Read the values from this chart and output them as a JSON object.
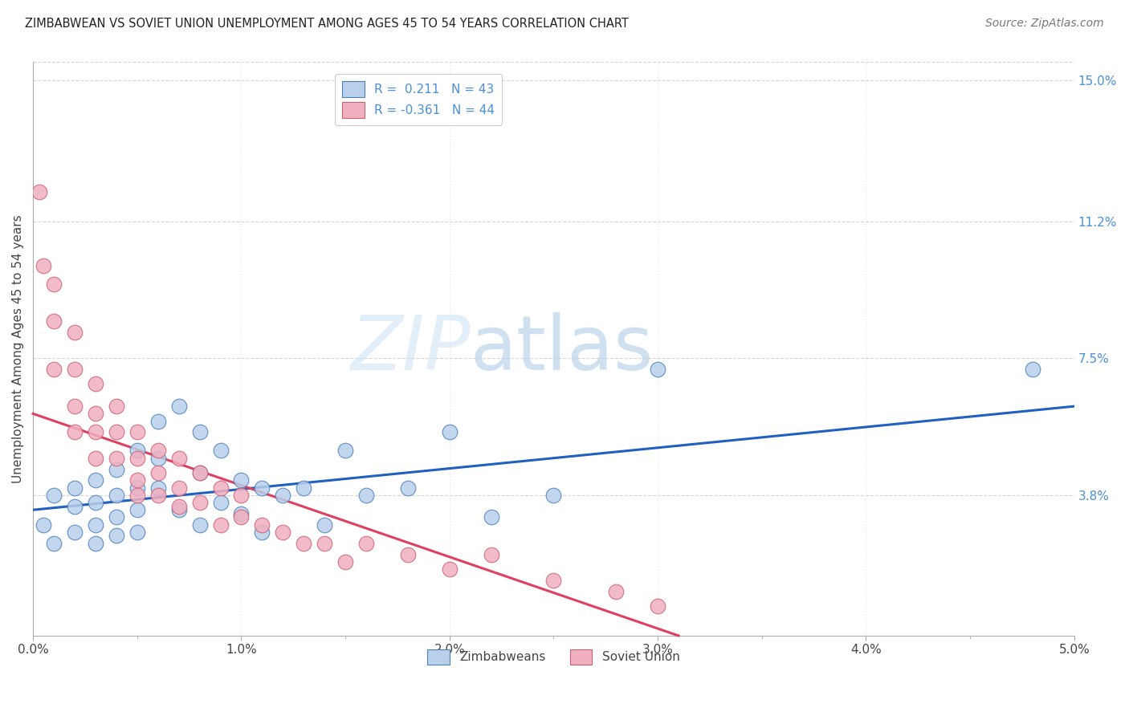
{
  "title": "ZIMBABWEAN VS SOVIET UNION UNEMPLOYMENT AMONG AGES 45 TO 54 YEARS CORRELATION CHART",
  "source": "Source: ZipAtlas.com",
  "ylabel": "Unemployment Among Ages 45 to 54 years",
  "xlim": [
    0.0,
    0.05
  ],
  "ylim": [
    0.0,
    0.155
  ],
  "right_yticks": [
    0.038,
    0.075,
    0.112,
    0.15
  ],
  "right_yticklabels": [
    "3.8%",
    "7.5%",
    "11.2%",
    "15.0%"
  ],
  "xticks_major": [
    0.0,
    0.01,
    0.02,
    0.03,
    0.04,
    0.05
  ],
  "xticklabels": [
    "0.0%",
    "1.0%",
    "2.0%",
    "3.0%",
    "4.0%",
    "5.0%"
  ],
  "xticks_minor": [
    0.005,
    0.015,
    0.025,
    0.035,
    0.045
  ],
  "blue_fill": "#b8d0ea",
  "blue_edge": "#4a7fc0",
  "blue_line": "#2060c0",
  "pink_fill": "#f0b0c0",
  "pink_edge": "#d06070",
  "pink_line": "#e04060",
  "text_color": "#444444",
  "right_axis_color": "#4a90d9",
  "grid_h_color": "#cccccc",
  "grid_v_color": "#dddddd",
  "background": "#ffffff",
  "zim_x": [
    0.0005,
    0.001,
    0.001,
    0.002,
    0.002,
    0.002,
    0.003,
    0.003,
    0.003,
    0.003,
    0.004,
    0.004,
    0.004,
    0.004,
    0.005,
    0.005,
    0.005,
    0.005,
    0.006,
    0.006,
    0.006,
    0.007,
    0.007,
    0.008,
    0.008,
    0.008,
    0.009,
    0.009,
    0.01,
    0.01,
    0.011,
    0.011,
    0.012,
    0.013,
    0.014,
    0.015,
    0.016,
    0.018,
    0.02,
    0.022,
    0.025,
    0.03,
    0.048
  ],
  "zim_y": [
    0.03,
    0.038,
    0.025,
    0.04,
    0.035,
    0.028,
    0.042,
    0.036,
    0.03,
    0.025,
    0.045,
    0.038,
    0.032,
    0.027,
    0.05,
    0.04,
    0.034,
    0.028,
    0.058,
    0.048,
    0.04,
    0.062,
    0.034,
    0.055,
    0.044,
    0.03,
    0.05,
    0.036,
    0.042,
    0.033,
    0.04,
    0.028,
    0.038,
    0.04,
    0.03,
    0.05,
    0.038,
    0.04,
    0.055,
    0.032,
    0.038,
    0.072,
    0.072
  ],
  "sov_x": [
    0.0003,
    0.0005,
    0.001,
    0.001,
    0.001,
    0.002,
    0.002,
    0.002,
    0.002,
    0.003,
    0.003,
    0.003,
    0.003,
    0.004,
    0.004,
    0.004,
    0.005,
    0.005,
    0.005,
    0.005,
    0.006,
    0.006,
    0.006,
    0.007,
    0.007,
    0.007,
    0.008,
    0.008,
    0.009,
    0.009,
    0.01,
    0.01,
    0.011,
    0.012,
    0.013,
    0.014,
    0.015,
    0.016,
    0.018,
    0.02,
    0.022,
    0.025,
    0.028,
    0.03
  ],
  "sov_y": [
    0.12,
    0.1,
    0.095,
    0.085,
    0.072,
    0.082,
    0.072,
    0.062,
    0.055,
    0.068,
    0.06,
    0.055,
    0.048,
    0.062,
    0.055,
    0.048,
    0.055,
    0.048,
    0.042,
    0.038,
    0.05,
    0.044,
    0.038,
    0.048,
    0.04,
    0.035,
    0.044,
    0.036,
    0.04,
    0.03,
    0.038,
    0.032,
    0.03,
    0.028,
    0.025,
    0.025,
    0.02,
    0.025,
    0.022,
    0.018,
    0.022,
    0.015,
    0.012,
    0.008
  ],
  "zim_trend_x": [
    0.0,
    0.05
  ],
  "zim_trend_y": [
    0.034,
    0.062
  ],
  "sov_trend_x": [
    0.0,
    0.031
  ],
  "sov_trend_y": [
    0.06,
    0.0
  ]
}
